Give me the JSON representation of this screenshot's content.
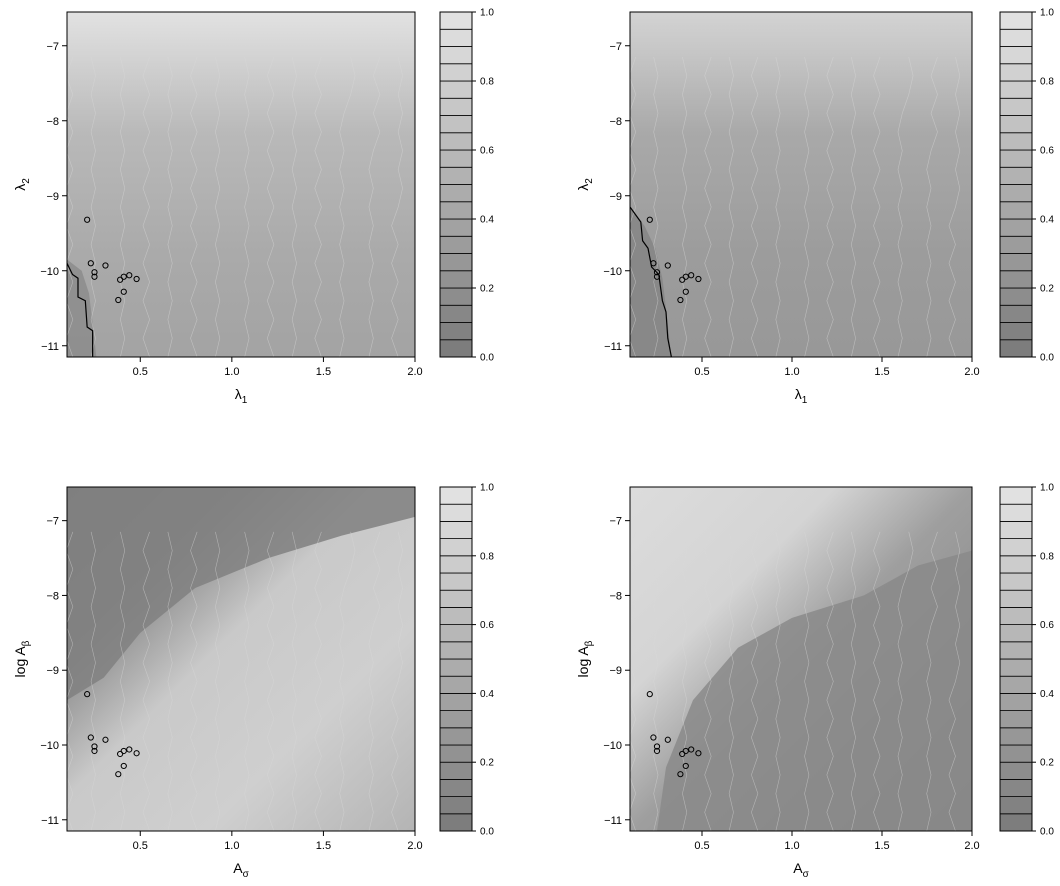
{
  "chart_data": [
    {
      "type": "heatmap",
      "xlabel": "λ",
      "xlabel_sub": "1",
      "ylabel": "λ",
      "ylabel_sub": "2",
      "xlim": [
        0.1,
        2.0
      ],
      "ylim": [
        -11.15,
        -6.55
      ],
      "xticks": [
        0.5,
        1.0,
        1.5,
        2.0
      ],
      "xtick_labels": [
        "0.5",
        "1.0",
        "1.5",
        "2.0"
      ],
      "yticks": [
        -7,
        -8,
        -9,
        -10,
        -11
      ],
      "ytick_labels": [
        "−7",
        "−8",
        "−9",
        "−10",
        "−11"
      ],
      "colorbar": {
        "ticks": [
          0.0,
          0.2,
          0.4,
          0.6,
          0.8,
          1.0
        ],
        "labels": [
          "0.0",
          "0.2",
          "0.4",
          "0.6",
          "0.8",
          "1.0"
        ],
        "levels": 20
      },
      "points": [
        [
          0.21,
          -9.32
        ],
        [
          0.23,
          -9.9
        ],
        [
          0.25,
          -10.02
        ],
        [
          0.25,
          -10.08
        ],
        [
          0.31,
          -9.93
        ],
        [
          0.39,
          -10.12
        ],
        [
          0.41,
          -10.08
        ],
        [
          0.44,
          -10.06
        ],
        [
          0.48,
          -10.11
        ],
        [
          0.38,
          -10.39
        ],
        [
          0.41,
          -10.28
        ]
      ]
    },
    {
      "type": "heatmap",
      "xlabel": "λ",
      "xlabel_sub": "1",
      "ylabel": "λ",
      "ylabel_sub": "2",
      "xlim": [
        0.1,
        2.0
      ],
      "ylim": [
        -11.15,
        -6.55
      ],
      "xticks": [
        0.5,
        1.0,
        1.5,
        2.0
      ],
      "xtick_labels": [
        "0.5",
        "1.0",
        "1.5",
        "2.0"
      ],
      "yticks": [
        -7,
        -8,
        -9,
        -10,
        -11
      ],
      "ytick_labels": [
        "−7",
        "−8",
        "−9",
        "−10",
        "−11"
      ],
      "colorbar": {
        "ticks": [
          0.0,
          0.2,
          0.4,
          0.6,
          0.8,
          1.0
        ],
        "labels": [
          "0.0",
          "0.2",
          "0.4",
          "0.6",
          "0.8",
          "1.0"
        ],
        "levels": 20
      },
      "points": [
        [
          0.21,
          -9.32
        ],
        [
          0.23,
          -9.9
        ],
        [
          0.25,
          -10.02
        ],
        [
          0.25,
          -10.08
        ],
        [
          0.31,
          -9.93
        ],
        [
          0.39,
          -10.12
        ],
        [
          0.41,
          -10.08
        ],
        [
          0.44,
          -10.06
        ],
        [
          0.48,
          -10.11
        ],
        [
          0.38,
          -10.39
        ],
        [
          0.41,
          -10.28
        ]
      ]
    },
    {
      "type": "heatmap",
      "xlabel": "A",
      "xlabel_sub": "σ",
      "ylabel": "log A",
      "ylabel_sub": "β",
      "xlim": [
        0.1,
        2.0
      ],
      "ylim": [
        -11.15,
        -6.55
      ],
      "xticks": [
        0.5,
        1.0,
        1.5,
        2.0
      ],
      "xtick_labels": [
        "0.5",
        "1.0",
        "1.5",
        "2.0"
      ],
      "yticks": [
        -7,
        -8,
        -9,
        -10,
        -11
      ],
      "ytick_labels": [
        "−7",
        "−8",
        "−9",
        "−10",
        "−11"
      ],
      "colorbar": {
        "ticks": [
          0.0,
          0.2,
          0.4,
          0.6,
          0.8,
          1.0
        ],
        "labels": [
          "0.0",
          "0.2",
          "0.4",
          "0.6",
          "0.8",
          "1.0"
        ],
        "levels": 20
      },
      "points": [
        [
          0.21,
          -9.32
        ],
        [
          0.23,
          -9.9
        ],
        [
          0.25,
          -10.02
        ],
        [
          0.25,
          -10.08
        ],
        [
          0.31,
          -9.93
        ],
        [
          0.39,
          -10.12
        ],
        [
          0.41,
          -10.08
        ],
        [
          0.44,
          -10.06
        ],
        [
          0.48,
          -10.11
        ],
        [
          0.38,
          -10.39
        ],
        [
          0.41,
          -10.28
        ]
      ]
    },
    {
      "type": "heatmap",
      "xlabel": "A",
      "xlabel_sub": "σ",
      "ylabel": "log A",
      "ylabel_sub": "β",
      "xlim": [
        0.1,
        2.0
      ],
      "ylim": [
        -11.15,
        -6.55
      ],
      "xticks": [
        0.5,
        1.0,
        1.5,
        2.0
      ],
      "xtick_labels": [
        "0.5",
        "1.0",
        "1.5",
        "2.0"
      ],
      "yticks": [
        -7,
        -8,
        -9,
        -10,
        -11
      ],
      "ytick_labels": [
        "−7",
        "−8",
        "−9",
        "−10",
        "−11"
      ],
      "colorbar": {
        "ticks": [
          0.0,
          0.2,
          0.4,
          0.6,
          0.8,
          1.0
        ],
        "labels": [
          "0.0",
          "0.2",
          "0.4",
          "0.6",
          "0.8",
          "1.0"
        ],
        "levels": 20
      },
      "points": [
        [
          0.21,
          -9.32
        ],
        [
          0.23,
          -9.9
        ],
        [
          0.25,
          -10.02
        ],
        [
          0.25,
          -10.08
        ],
        [
          0.31,
          -9.93
        ],
        [
          0.39,
          -10.12
        ],
        [
          0.41,
          -10.08
        ],
        [
          0.44,
          -10.06
        ],
        [
          0.48,
          -10.11
        ],
        [
          0.38,
          -10.39
        ],
        [
          0.41,
          -10.28
        ]
      ]
    }
  ]
}
